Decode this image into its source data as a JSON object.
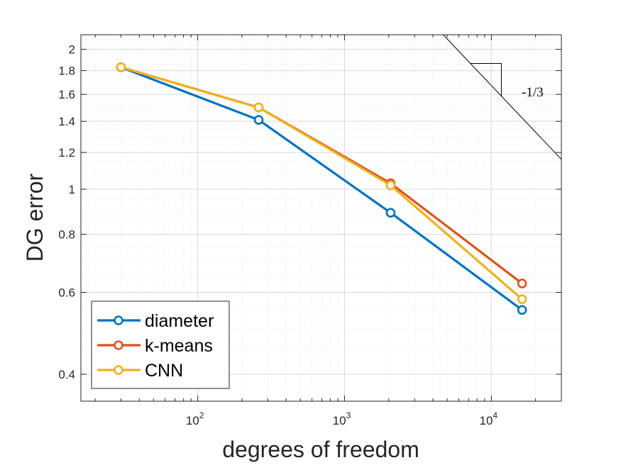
{
  "chart_data": {
    "type": "line",
    "xscale": "log",
    "yscale": "log",
    "xlim": [
      16,
      30000
    ],
    "ylim": [
      0.35,
      2.15
    ],
    "xlabel": "degrees of freedom",
    "ylabel": "DG error",
    "grid": true,
    "minor_grid": true,
    "x_ticks": [
      {
        "value": 100,
        "base": "10",
        "exp": "2"
      },
      {
        "value": 1000,
        "base": "10",
        "exp": "3"
      },
      {
        "value": 10000,
        "base": "10",
        "exp": "4"
      }
    ],
    "y_ticks": [
      {
        "value": 0.4,
        "label": "0.4"
      },
      {
        "value": 0.6,
        "label": "0.6"
      },
      {
        "value": 0.8,
        "label": "0.8"
      },
      {
        "value": 1.0,
        "label": "1"
      },
      {
        "value": 1.2,
        "label": "1.2"
      },
      {
        "value": 1.4,
        "label": "1.4"
      },
      {
        "value": 1.6,
        "label": "1.6"
      },
      {
        "value": 1.8,
        "label": "1.8"
      },
      {
        "value": 2.0,
        "label": "2"
      }
    ],
    "series": [
      {
        "name": "diameter",
        "color": "#0072BD",
        "x": [
          30,
          260,
          2060,
          16200
        ],
        "y": [
          1.83,
          1.41,
          0.89,
          0.55
        ]
      },
      {
        "name": "k-means",
        "color": "#D95319",
        "x": [
          30,
          260,
          2060,
          16200
        ],
        "y": [
          1.83,
          1.5,
          1.03,
          0.627
        ]
      },
      {
        "name": "CNN",
        "color": "#EDB120",
        "x": [
          30,
          260,
          2060,
          16200
        ],
        "y": [
          1.83,
          1.5,
          1.02,
          0.58
        ]
      }
    ],
    "legend_position": "bottom-left",
    "reference_slope": {
      "label": "-1/3",
      "slope": -0.333,
      "x_start": 4700,
      "x_end": 30000,
      "triangle_x": [
        7200,
        11700
      ]
    }
  }
}
